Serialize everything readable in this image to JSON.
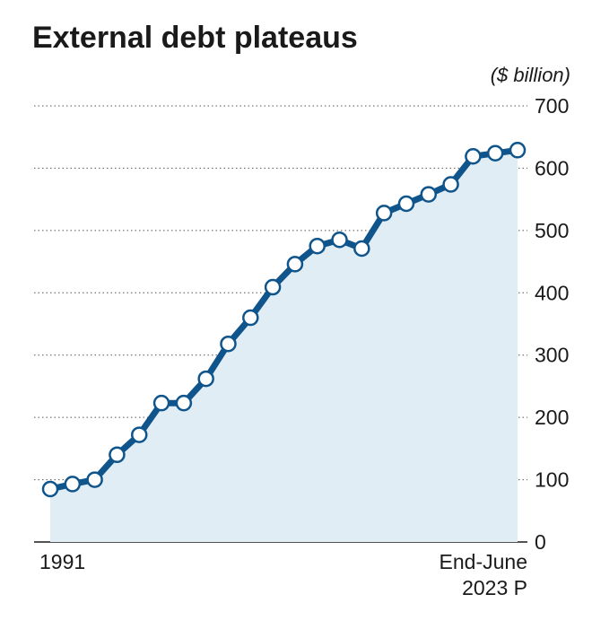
{
  "chart_data": {
    "type": "line",
    "title": "External debt plateaus",
    "unit_label": "($ billion)",
    "x_tick_labels": [
      {
        "index": 0,
        "lines": [
          "1991"
        ]
      },
      {
        "index": 21,
        "lines": [
          "End-June",
          "2023 P"
        ]
      }
    ],
    "ylim": [
      0,
      700
    ],
    "yticks": [
      0,
      100,
      200,
      300,
      400,
      500,
      600,
      700
    ],
    "grid": true,
    "fill_area": true,
    "series": [
      {
        "values": [
          85,
          93,
          100,
          140,
          172,
          223,
          223,
          262,
          318,
          360,
          409,
          446,
          475,
          485,
          471,
          528,
          543,
          558,
          574,
          619,
          624,
          629
        ]
      }
    ],
    "colors": {
      "line": "#0f558c",
      "area": "#e1edf5",
      "marker_fill": "#ffffff"
    }
  }
}
